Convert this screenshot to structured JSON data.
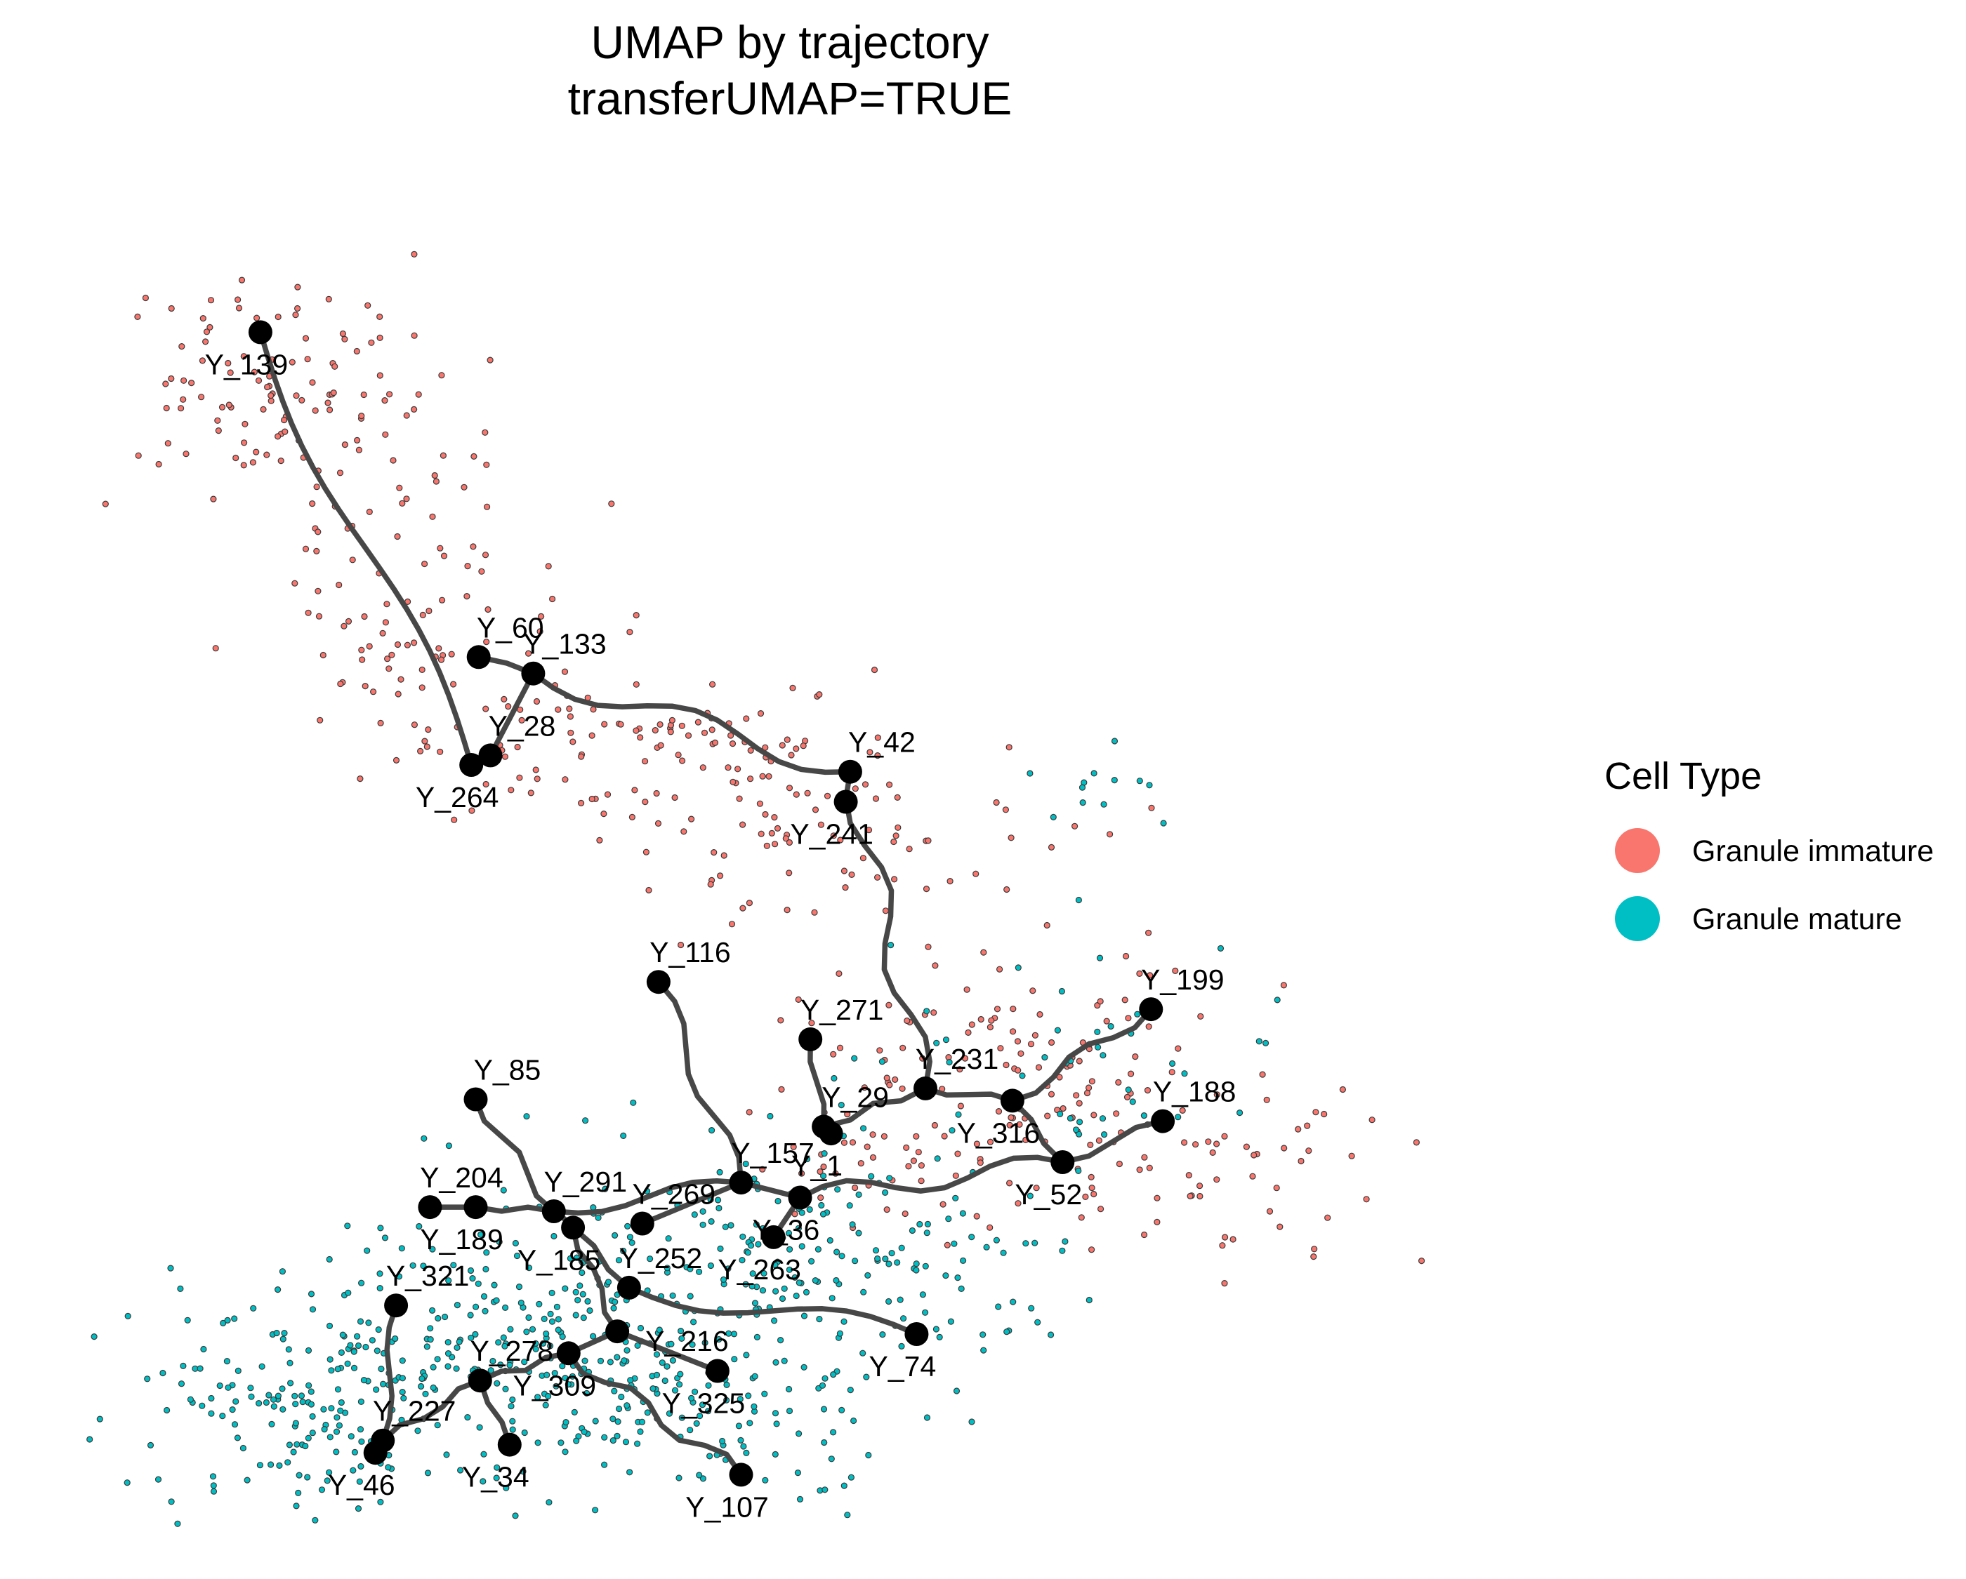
{
  "chart_data": {
    "type": "scatter",
    "title": [
      "UMAP by trajectory",
      "transferUMAP=TRUE"
    ],
    "xlabel": "",
    "ylabel": "",
    "grid": false,
    "axes_visible": false,
    "xlim": [
      0,
      100
    ],
    "ylim": [
      0,
      100
    ],
    "legend": {
      "title": "Cell Type",
      "position": "right",
      "entries": [
        {
          "label": "Granule immature",
          "color": "#F8766D"
        },
        {
          "label": "Granule mature",
          "color": "#00BFC4"
        }
      ]
    },
    "cell_clouds": [
      {
        "type": "Granule immature",
        "color": "#F8766D",
        "regions": [
          {
            "cx": 14,
            "cy": 84,
            "sx": 6,
            "sy": 4,
            "n": 110
          },
          {
            "cx": 22,
            "cy": 69,
            "sx": 5,
            "sy": 5,
            "n": 80
          },
          {
            "cx": 37,
            "cy": 58,
            "sx": 8,
            "sy": 3.5,
            "n": 110
          },
          {
            "cx": 50,
            "cy": 51,
            "sx": 8,
            "sy": 4,
            "n": 80
          },
          {
            "cx": 64,
            "cy": 35,
            "sx": 8,
            "sy": 4,
            "n": 100
          },
          {
            "cx": 75,
            "cy": 28,
            "sx": 7,
            "sy": 4,
            "n": 80
          },
          {
            "cx": 55,
            "cy": 27,
            "sx": 6,
            "sy": 3,
            "n": 40
          }
        ]
      },
      {
        "type": "Granule mature",
        "color": "#00BFC4",
        "regions": [
          {
            "cx": 18,
            "cy": 9,
            "sx": 8,
            "sy": 4,
            "n": 200
          },
          {
            "cx": 33,
            "cy": 15,
            "sx": 9,
            "sy": 5,
            "n": 230
          },
          {
            "cx": 44,
            "cy": 10,
            "sx": 7,
            "sy": 4,
            "n": 130
          },
          {
            "cx": 48,
            "cy": 22,
            "sx": 8,
            "sy": 4,
            "n": 110
          },
          {
            "cx": 66,
            "cy": 34,
            "sx": 8,
            "sy": 5,
            "n": 50
          },
          {
            "cx": 70,
            "cy": 55,
            "sx": 2,
            "sy": 2,
            "n": 12
          },
          {
            "cx": 59,
            "cy": 19,
            "sx": 5,
            "sy": 3,
            "n": 40
          }
        ]
      }
    ],
    "nodes": [
      {
        "id": "Y_139",
        "x": 12.9,
        "y": 88.0,
        "label_side": "below"
      },
      {
        "id": "Y_60",
        "x": 27.7,
        "y": 64.2,
        "label_side": "above"
      },
      {
        "id": "Y_133",
        "x": 31.4,
        "y": 63.0,
        "label_side": "above"
      },
      {
        "id": "Y_28",
        "x": 28.5,
        "y": 57.0,
        "label_side": "above"
      },
      {
        "id": "Y_264",
        "x": 27.2,
        "y": 56.3,
        "label_side": "below"
      },
      {
        "id": "Y_42",
        "x": 52.9,
        "y": 55.8,
        "label_side": "above"
      },
      {
        "id": "Y_241",
        "x": 52.6,
        "y": 53.6,
        "label_side": "below"
      },
      {
        "id": "Y_116",
        "x": 39.9,
        "y": 40.4,
        "label_side": "above"
      },
      {
        "id": "Y_199",
        "x": 73.3,
        "y": 38.4,
        "label_side": "above"
      },
      {
        "id": "Y_271",
        "x": 50.2,
        "y": 36.2,
        "label_side": "above"
      },
      {
        "id": "Y_231",
        "x": 58.0,
        "y": 32.6,
        "label_side": "above"
      },
      {
        "id": "Y_85",
        "x": 27.5,
        "y": 31.8,
        "label_side": "above"
      },
      {
        "id": "Y_316",
        "x": 63.9,
        "y": 31.7,
        "label_side": "below"
      },
      {
        "id": "Y_188",
        "x": 74.1,
        "y": 30.2,
        "label_side": "above"
      },
      {
        "id": "Y_29",
        "x": 51.1,
        "y": 29.8,
        "label_side": "above"
      },
      {
        "id": "Y_1",
        "x": 51.6,
        "y": 29.3,
        "label_side": "below"
      },
      {
        "id": "Y_52",
        "x": 67.3,
        "y": 27.2,
        "label_side": "below"
      },
      {
        "id": "Y_157",
        "x": 45.5,
        "y": 25.7,
        "label_side": "above"
      },
      {
        "id": "Y_36",
        "x": 49.5,
        "y": 24.6,
        "label_side": "below"
      },
      {
        "id": "Y_204",
        "x": 24.4,
        "y": 23.9,
        "label_side": "above"
      },
      {
        "id": "Y_189",
        "x": 27.5,
        "y": 23.9,
        "label_side": "below"
      },
      {
        "id": "Y_291",
        "x": 32.8,
        "y": 23.6,
        "label_side": "above"
      },
      {
        "id": "Y_269",
        "x": 38.8,
        "y": 22.7,
        "label_side": "above"
      },
      {
        "id": "Y_263",
        "x": 47.7,
        "y": 21.7,
        "label_side": "below"
      },
      {
        "id": "Y_252",
        "x": 37.9,
        "y": 18.0,
        "label_side": "above"
      },
      {
        "id": "Y_185",
        "x": 34.1,
        "y": 22.4,
        "label_side": "below"
      },
      {
        "id": "Y_321",
        "x": 22.1,
        "y": 16.7,
        "label_side": "above"
      },
      {
        "id": "Y_74",
        "x": 57.4,
        "y": 14.6,
        "label_side": "below"
      },
      {
        "id": "Y_216",
        "x": 37.1,
        "y": 14.8,
        "label_side": "right"
      },
      {
        "id": "Y_278",
        "x": 27.8,
        "y": 11.2,
        "label_side": "above"
      },
      {
        "id": "Y_309",
        "x": 33.8,
        "y": 13.2,
        "label_side": "below"
      },
      {
        "id": "Y_325",
        "x": 43.9,
        "y": 11.9,
        "label_side": "below"
      },
      {
        "id": "Y_227",
        "x": 21.2,
        "y": 6.8,
        "label_side": "above"
      },
      {
        "id": "Y_46",
        "x": 20.7,
        "y": 5.9,
        "label_side": "below"
      },
      {
        "id": "Y_34",
        "x": 29.8,
        "y": 6.5,
        "label_side": "below"
      },
      {
        "id": "Y_107",
        "x": 45.5,
        "y": 4.3,
        "label_side": "below"
      }
    ],
    "trajectory_edges": [
      {
        "from": "Y_139",
        "to": "Y_264"
      },
      {
        "from": "Y_60",
        "to": "Y_133"
      },
      {
        "from": "Y_133",
        "to": "Y_28"
      },
      {
        "from": "Y_28",
        "to": "Y_264"
      },
      {
        "from": "Y_133",
        "to": "Y_42"
      },
      {
        "from": "Y_42",
        "to": "Y_231"
      },
      {
        "from": "Y_271",
        "to": "Y_29"
      },
      {
        "from": "Y_29",
        "to": "Y_231"
      },
      {
        "from": "Y_1",
        "to": "Y_29"
      },
      {
        "from": "Y_231",
        "to": "Y_316"
      },
      {
        "from": "Y_316",
        "to": "Y_199"
      },
      {
        "from": "Y_316",
        "to": "Y_52"
      },
      {
        "from": "Y_52",
        "to": "Y_188"
      },
      {
        "from": "Y_52",
        "to": "Y_36"
      },
      {
        "from": "Y_36",
        "to": "Y_157"
      },
      {
        "from": "Y_36",
        "to": "Y_263"
      },
      {
        "from": "Y_157",
        "to": "Y_116"
      },
      {
        "from": "Y_157",
        "to": "Y_269"
      },
      {
        "from": "Y_157",
        "to": "Y_291"
      },
      {
        "from": "Y_85",
        "to": "Y_291"
      },
      {
        "from": "Y_204",
        "to": "Y_189"
      },
      {
        "from": "Y_189",
        "to": "Y_291"
      },
      {
        "from": "Y_291",
        "to": "Y_185"
      },
      {
        "from": "Y_185",
        "to": "Y_252"
      },
      {
        "from": "Y_252",
        "to": "Y_74"
      },
      {
        "from": "Y_185",
        "to": "Y_216"
      },
      {
        "from": "Y_216",
        "to": "Y_325"
      },
      {
        "from": "Y_216",
        "to": "Y_309"
      },
      {
        "from": "Y_309",
        "to": "Y_278"
      },
      {
        "from": "Y_309",
        "to": "Y_107"
      },
      {
        "from": "Y_278",
        "to": "Y_34"
      },
      {
        "from": "Y_278",
        "to": "Y_227"
      },
      {
        "from": "Y_227",
        "to": "Y_46"
      },
      {
        "from": "Y_227",
        "to": "Y_321"
      }
    ]
  }
}
